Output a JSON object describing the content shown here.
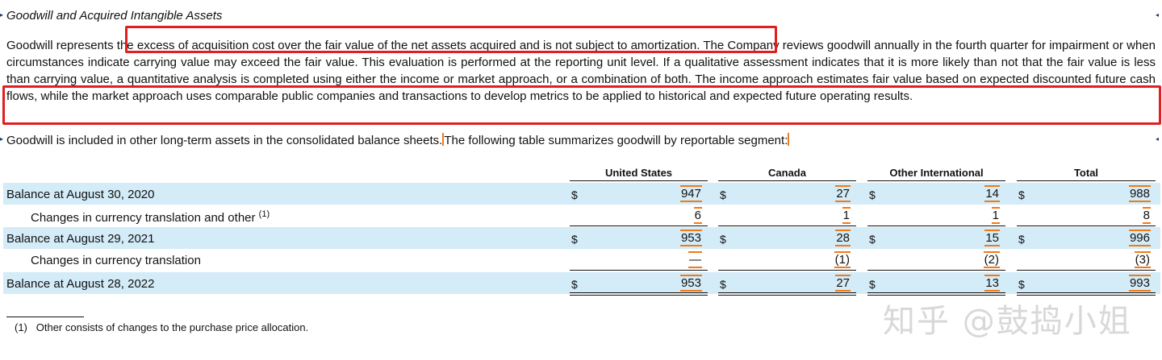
{
  "heading": "Goodwill and Acquired Intangible Assets",
  "paragraph1": {
    "part_a": "Goodwill represents t",
    "highlight_1": "he excess of acquisition cost over the fair value of the net assets acquired and is not subject to amortization.",
    "part_b": " The Company reviews goodwill annually in the fourth quarter for impairment or when circumstances indicate carrying value may exceed the fair value. This evaluation is performed at the reporting unit level. If a qualitative assessment indicates that it is more likely than not that the fair value is less than carrying value, a quantitative analysis is completed using either the income or market approach, or a combination of both. The income approach estimates fair ",
    "highlight_2": "value based on expected discounted future cash flows, while the market approach uses comparable public companies and transactions to develop metrics to be applied to historical and expected future operating results."
  },
  "paragraph2": {
    "part_a": "Goodwill is included in other long-term assets in the consolidated balance sheets.",
    "part_b": "The following table summarizes goodwill by reportable segment:"
  },
  "table": {
    "columns": [
      "United States",
      "Canada",
      "Other International",
      "Total"
    ],
    "rows": [
      {
        "label": "Balance at August 30, 2020",
        "dollar": "$",
        "values": [
          "947",
          "27",
          "14",
          "988"
        ]
      },
      {
        "label": "Changes in currency translation and other",
        "sup": "(1)",
        "dollar": "",
        "values": [
          "6",
          "1",
          "1",
          "8"
        ]
      },
      {
        "label": "Balance at August 29, 2021",
        "dollar": "$",
        "values": [
          "953",
          "28",
          "15",
          "996"
        ]
      },
      {
        "label": "Changes in currency translation",
        "dollar": "",
        "values": [
          "—",
          "(1)",
          "(2)",
          "(3)"
        ]
      },
      {
        "label": "Balance at August 28, 2022",
        "dollar": "$",
        "values": [
          "953",
          "27",
          "13",
          "993"
        ]
      }
    ]
  },
  "footnote": {
    "marker": "(1)",
    "text": "Other consists of changes to the purchase price allocation."
  },
  "watermark": "知乎 @鼓捣小姐",
  "colors": {
    "highlight_box": "#e02020",
    "row_shade": "#d3ecf8",
    "edit_mark": "#f07a18"
  }
}
